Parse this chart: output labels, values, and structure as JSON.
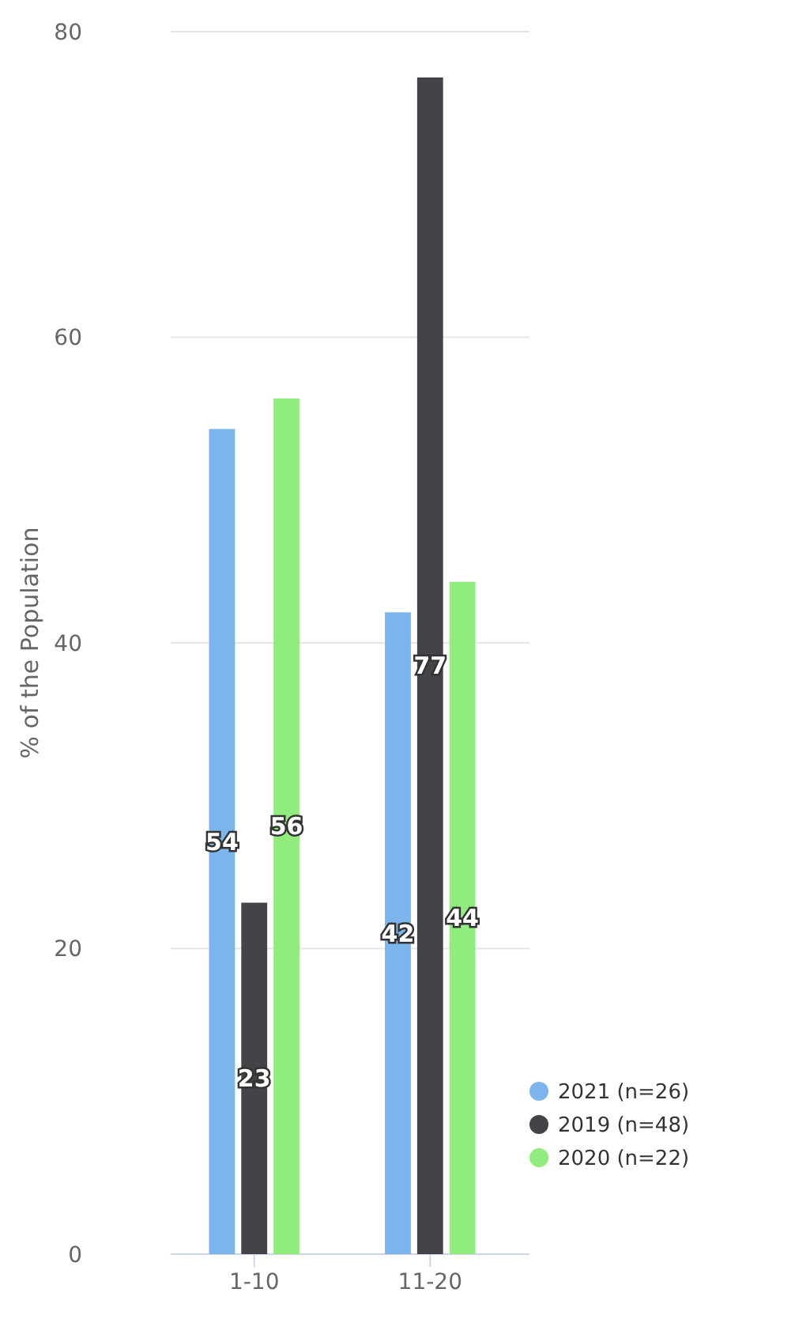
{
  "chart_data": {
    "type": "bar",
    "ylabel": "% of the Population",
    "categories": [
      "1-10",
      "11-20"
    ],
    "series": [
      {
        "name": "2021 (n=26)",
        "color": "#7cb5ec",
        "values": [
          54,
          42
        ]
      },
      {
        "name": "2019 (n=48)",
        "color": "#434348",
        "values": [
          23,
          77
        ]
      },
      {
        "name": "2020 (n=22)",
        "color": "#90ed7d",
        "values": [
          56,
          44
        ]
      }
    ],
    "ylim": [
      0,
      80
    ],
    "yticks": [
      0,
      20,
      40,
      60,
      80
    ],
    "grid": "y",
    "legend": "bottom right",
    "data_labels": true
  }
}
